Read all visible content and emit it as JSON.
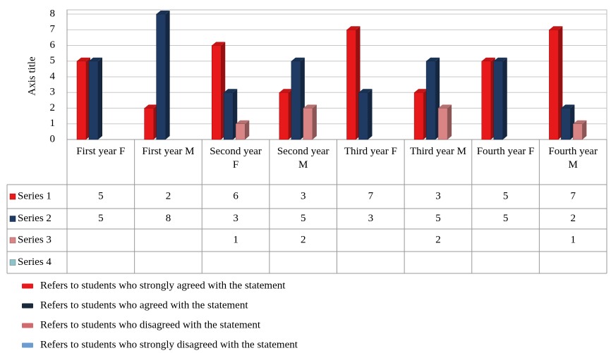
{
  "chart_data": {
    "type": "bar",
    "y_axis_label": "Axis title",
    "categories": [
      "First year F",
      "First year M",
      "Second year F",
      "Second year M",
      "Third year F",
      "Third year M",
      "Fourth year F",
      "Fourth year M"
    ],
    "series": [
      {
        "name": "Series 1",
        "color": "#e8191a",
        "values": [
          5,
          2,
          6,
          3,
          7,
          3,
          5,
          7
        ]
      },
      {
        "name": "Series 2",
        "color": "#1f3b63",
        "values": [
          5,
          8,
          3,
          5,
          3,
          5,
          5,
          2
        ]
      },
      {
        "name": "Series 3",
        "color": "#d98585",
        "values": [
          null,
          null,
          1,
          2,
          null,
          2,
          null,
          1
        ]
      },
      {
        "name": "Series 4",
        "color": "#8fc3c9",
        "values": [
          null,
          null,
          null,
          null,
          null,
          null,
          null,
          null
        ]
      }
    ],
    "ylim": [
      0,
      8
    ],
    "yticks": [
      0,
      1,
      2,
      3,
      4,
      5,
      6,
      7,
      8
    ],
    "grid": true,
    "notes": [
      {
        "text": "Refers to students who strongly agreed with the statement",
        "color": "#e8191a"
      },
      {
        "text": "Refers to students who agreed with the statement",
        "color": "#1a2a3c"
      },
      {
        "text": "Refers to students who disagreed with the statement",
        "color": "#d06a6e"
      },
      {
        "text": "Refers to students who strongly disagreed with the statement",
        "color": "#6a9bd1"
      }
    ]
  }
}
